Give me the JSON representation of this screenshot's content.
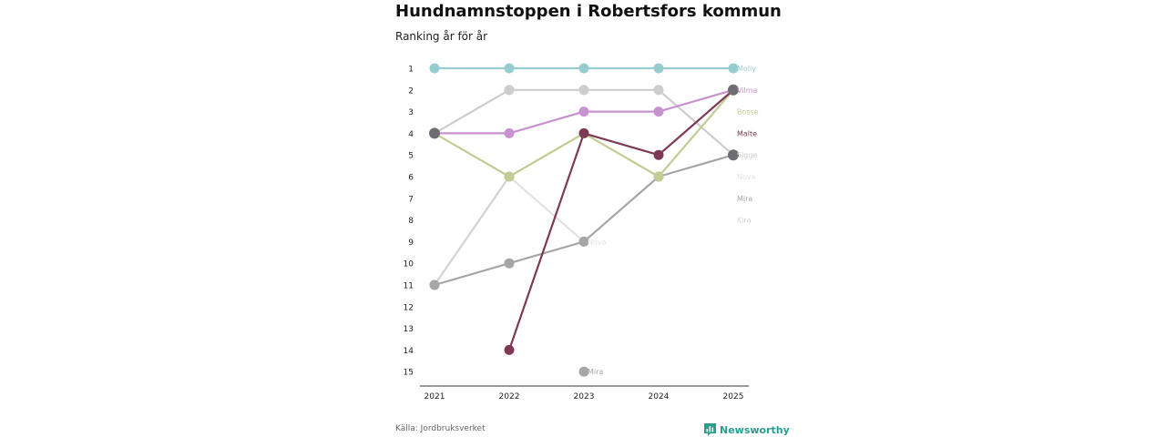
{
  "header": {
    "title": "Hundnamnstoppen i Robertsfors kommun",
    "subtitle": "Ranking år för år"
  },
  "footer": {
    "source": "Källa: Jordbruksverket",
    "brand": "Newsworthy"
  },
  "chart_data": {
    "type": "line",
    "title": "Hundnamnstoppen i Robertsfors kommun",
    "subtitle": "Ranking år för år",
    "xlabel": "",
    "ylabel": "",
    "x": [
      "2021",
      "2022",
      "2023",
      "2024",
      "2025"
    ],
    "y_ticks": [
      "1",
      "2",
      "3",
      "4",
      "5",
      "6",
      "7",
      "8",
      "9",
      "10",
      "11",
      "12",
      "13",
      "14",
      "15"
    ],
    "ylim": [
      1,
      15
    ],
    "y_reversed": true,
    "series": [
      {
        "name": "Nova",
        "color": "#e2e2e2",
        "ranks": [
          null,
          6,
          9,
          null,
          null
        ],
        "label_rank": 6,
        "point_label": {
          "index": 2,
          "text": "Nova"
        }
      },
      {
        "name": "Kira",
        "color": "#d3d3d3",
        "ranks": [
          11,
          6,
          null,
          null,
          null
        ],
        "label_rank": 8
      },
      {
        "name": "Sigge",
        "color": "#cdcdcd",
        "ranks": [
          4,
          2,
          2,
          2,
          5
        ],
        "label_rank": 5
      },
      {
        "name": "Mira",
        "color": "#a6a6a6",
        "ranks": [
          11,
          10,
          9,
          6,
          5
        ],
        "label_rank": 7,
        "extra_points": [
          {
            "index": 2,
            "rank": 15
          }
        ],
        "point_label": {
          "index": 2,
          "rank": 15,
          "text": "Mira"
        }
      },
      {
        "name": "Bosse",
        "color": "#c5cb94",
        "ranks": [
          4,
          6,
          4,
          6,
          2
        ],
        "label_rank": 3
      },
      {
        "name": "Vilma",
        "color": "#c891cf",
        "ranks": [
          4,
          4,
          3,
          3,
          2
        ],
        "label_rank": 2
      },
      {
        "name": "Malte",
        "color": "#7e3a55",
        "ranks": [
          null,
          14,
          4,
          5,
          2
        ],
        "label_rank": 4
      },
      {
        "name": "Molly",
        "color": "#98cdd0",
        "ranks": [
          1,
          1,
          1,
          1,
          1
        ],
        "label_rank": 1
      }
    ],
    "overlay_points": [
      {
        "index": 0,
        "rank": 4,
        "color": "#6e6e72"
      },
      {
        "index": 4,
        "rank": 2,
        "color": "#6e6e72"
      },
      {
        "index": 4,
        "rank": 5,
        "color": "#6e6e72"
      }
    ],
    "legend": "end-of-line labels"
  }
}
